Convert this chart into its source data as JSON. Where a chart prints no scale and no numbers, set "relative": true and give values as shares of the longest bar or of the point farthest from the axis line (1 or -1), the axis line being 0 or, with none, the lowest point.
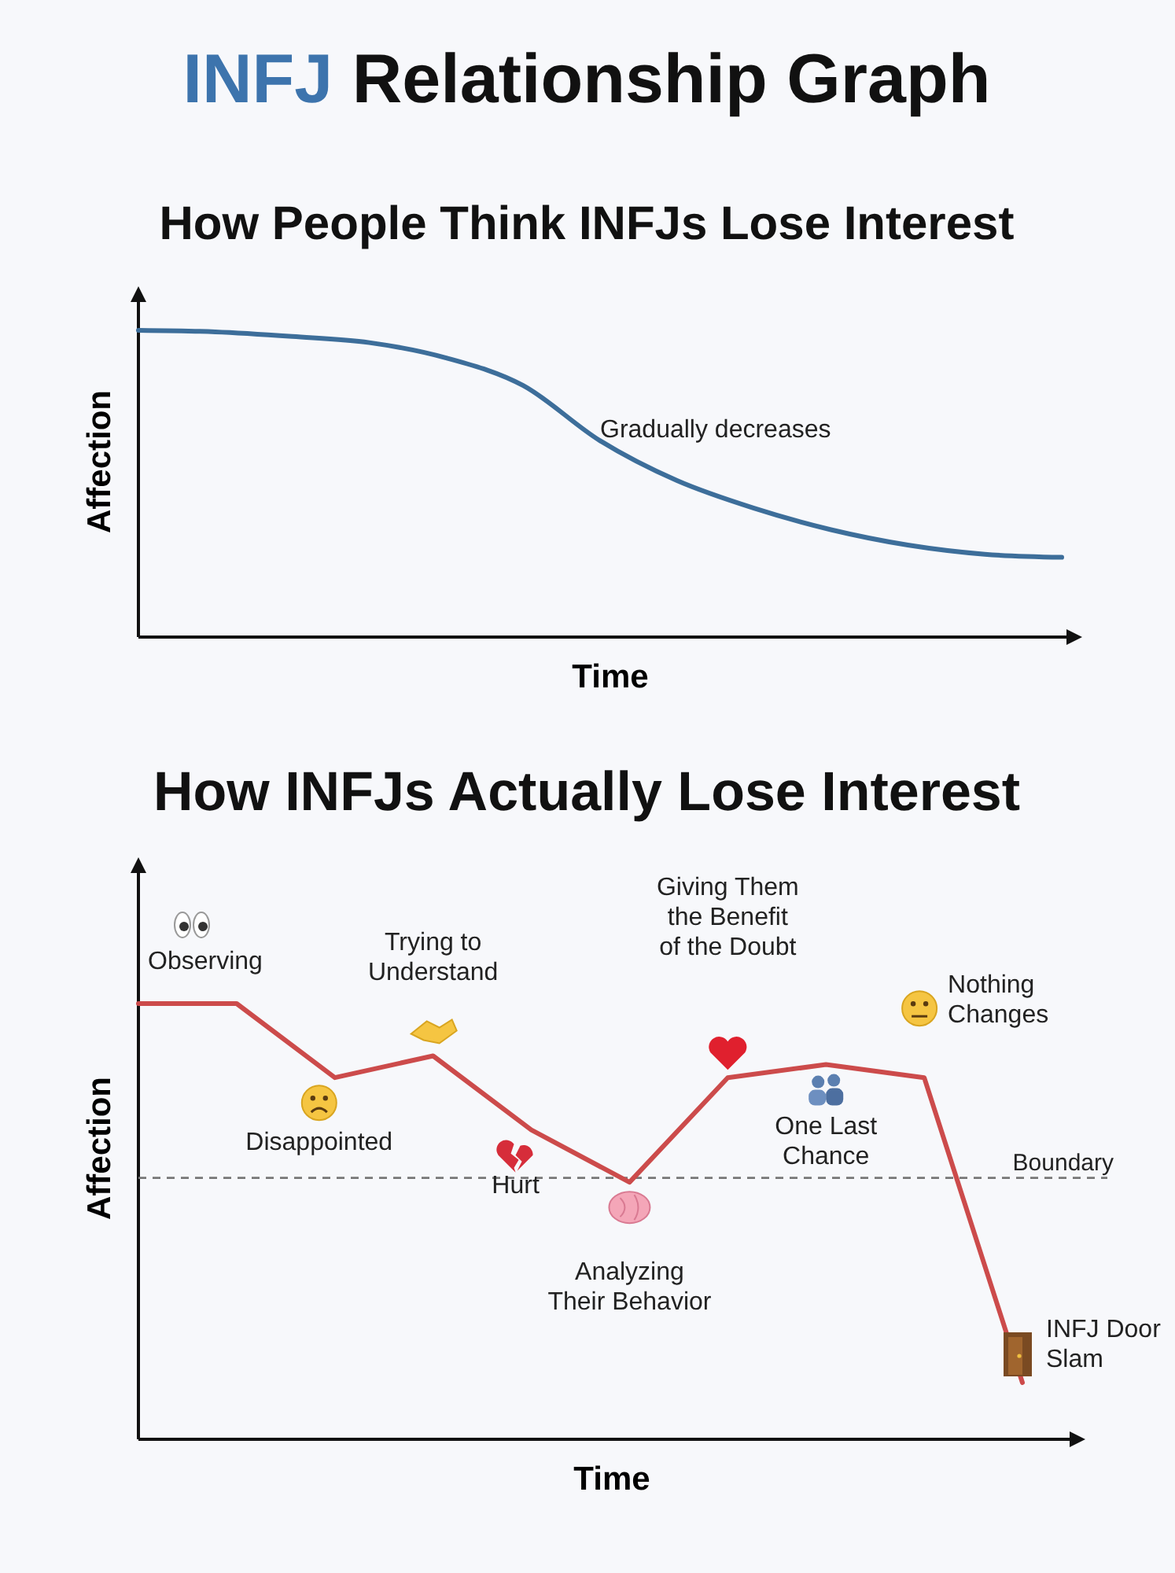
{
  "chart_data": [
    {
      "type": "line",
      "title": "INFJ Relationship Graph",
      "subtitle": "How People Think INFJs Lose Interest",
      "xlabel": "Time",
      "ylabel": "Affection",
      "relative": true,
      "categories": [
        null,
        null,
        null,
        null,
        null,
        null,
        null,
        null,
        null,
        null,
        null,
        null,
        null
      ],
      "series": [
        {
          "color": "#3d6e9a",
          "values": [
            1,
            0.995,
            0.98,
            0.96,
            0.91,
            0.82,
            0.64,
            0.51,
            0.42,
            0.35,
            0.3,
            0.27,
            0.26
          ]
        }
      ],
      "annotations": [
        "Gradually decreases"
      ]
    },
    {
      "type": "line",
      "title": "How INFJs Actually Lose Interest",
      "xlabel": "Time",
      "ylabel": "Affection",
      "relative": true,
      "categories": [
        null,
        null,
        null,
        null,
        null,
        null,
        null,
        null,
        null,
        null
      ],
      "series": [
        {
          "color": "#cc4b4b",
          "values": [
            1,
            1,
            0.83,
            0.88,
            0.71,
            0.59,
            0.83,
            0.86,
            0.83,
            0.13
          ]
        }
      ],
      "ref_lines": [
        {
          "axis": "y",
          "value": 0.6,
          "label": "Boundary",
          "color": "#777777",
          "line_style": "dashed"
        }
      ],
      "annotations": [
        "Observing",
        "Disappointed",
        "Trying to Understand",
        "Hurt",
        "Analyzing Their Behavior",
        "Giving Them the Benefit of the Doubt",
        "One Last Chance",
        "Nothing Changes",
        "INFJ Door Slam"
      ]
    }
  ]
}
